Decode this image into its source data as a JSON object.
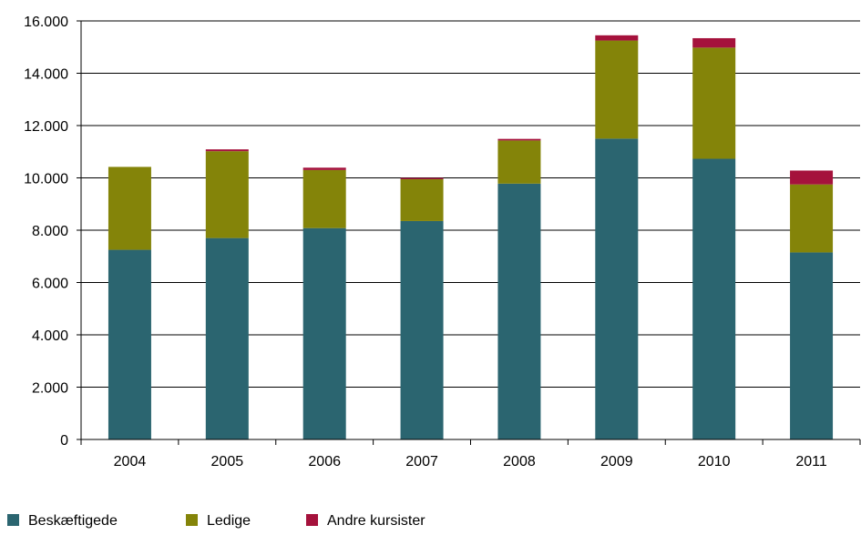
{
  "chart_data": {
    "type": "bar",
    "stacked": true,
    "categories": [
      "2004",
      "2005",
      "2006",
      "2007",
      "2008",
      "2009",
      "2010",
      "2011"
    ],
    "series": [
      {
        "name": "Beskæftigede",
        "color": "#2b6570",
        "values": [
          7250,
          7700,
          8080,
          8350,
          9780,
          11500,
          10730,
          7150
        ]
      },
      {
        "name": "Ledige",
        "color": "#848409",
        "values": [
          3170,
          3320,
          2220,
          1600,
          1650,
          3750,
          4250,
          2600
        ]
      },
      {
        "name": "Andre kursister",
        "color": "#a5123c",
        "values": [
          0,
          70,
          90,
          50,
          60,
          200,
          360,
          530
        ]
      }
    ],
    "ylim": [
      0,
      16000
    ],
    "yticks": [
      0,
      2000,
      4000,
      6000,
      8000,
      10000,
      12000,
      14000,
      16000
    ],
    "ytick_labels": [
      "0",
      "2.000",
      "4.000",
      "6.000",
      "8.000",
      "10.000",
      "12.000",
      "14.000",
      "16.000"
    ],
    "grid": true,
    "legend_position": "bottom-left",
    "title": "",
    "xlabel": "",
    "ylabel": ""
  }
}
